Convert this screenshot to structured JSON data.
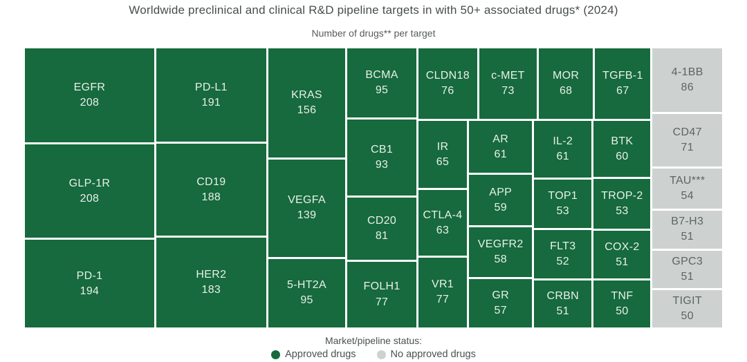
{
  "colors": {
    "approved": "#166A3D",
    "no_approved": "#CDD2D0",
    "green_cell_text": "#E9F0EA",
    "gray_cell_text": "#5C6462",
    "heading_text": "#474D4C"
  },
  "chart_data": {
    "type": "treemap",
    "title": "Worldwide preclinical and clinical R&D pipeline targets in with 50+ associated drugs* (2024)",
    "subtitle": "Number of drugs** per target",
    "legend_title": "Market/pipeline status:",
    "legend_position": "bottom",
    "groups": [
      {
        "status": "Approved drugs",
        "color": "#166A3D",
        "cells": [
          {
            "target": "EGFR",
            "drugs": 208
          },
          {
            "target": "GLP-1R",
            "drugs": 208
          },
          {
            "target": "PD-1",
            "drugs": 194
          },
          {
            "target": "PD-L1",
            "drugs": 191
          },
          {
            "target": "CD19",
            "drugs": 188
          },
          {
            "target": "HER2",
            "drugs": 183
          },
          {
            "target": "KRAS",
            "drugs": 156
          },
          {
            "target": "VEGFA",
            "drugs": 139
          },
          {
            "target": "5-HT2A",
            "drugs": 95
          },
          {
            "target": "BCMA",
            "drugs": 95
          },
          {
            "target": "CB1",
            "drugs": 93
          },
          {
            "target": "CD20",
            "drugs": 81
          },
          {
            "target": "FOLH1",
            "drugs": 77
          },
          {
            "target": "CLDN18",
            "drugs": 76
          },
          {
            "target": "c-MET",
            "drugs": 73
          },
          {
            "target": "MOR",
            "drugs": 68
          },
          {
            "target": "TGFB-1",
            "drugs": 67
          },
          {
            "target": "IR",
            "drugs": 65
          },
          {
            "target": "CTLA-4",
            "drugs": 63
          },
          {
            "target": "VR1",
            "drugs": 77
          },
          {
            "target": "AR",
            "drugs": 61
          },
          {
            "target": "APP",
            "drugs": 59
          },
          {
            "target": "VEGFR2",
            "drugs": 58
          },
          {
            "target": "GR",
            "drugs": 57
          },
          {
            "target": "IL-2",
            "drugs": 61
          },
          {
            "target": "TOP1",
            "drugs": 53
          },
          {
            "target": "FLT3",
            "drugs": 52
          },
          {
            "target": "CRBN",
            "drugs": 51
          },
          {
            "target": "BTK",
            "drugs": 60
          },
          {
            "target": "TROP-2",
            "drugs": 53
          },
          {
            "target": "COX-2",
            "drugs": 51
          },
          {
            "target": "TNF",
            "drugs": 50
          }
        ]
      },
      {
        "status": "No approved drugs",
        "color": "#CDD2D0",
        "cells": [
          {
            "target": "4-1BB",
            "drugs": 86
          },
          {
            "target": "CD47",
            "drugs": 71
          },
          {
            "target": "TAU***",
            "drugs": 54
          },
          {
            "target": "B7-H3",
            "drugs": 51
          },
          {
            "target": "GPC3",
            "drugs": 51
          },
          {
            "target": "TIGIT",
            "drugs": 50
          }
        ]
      }
    ]
  }
}
